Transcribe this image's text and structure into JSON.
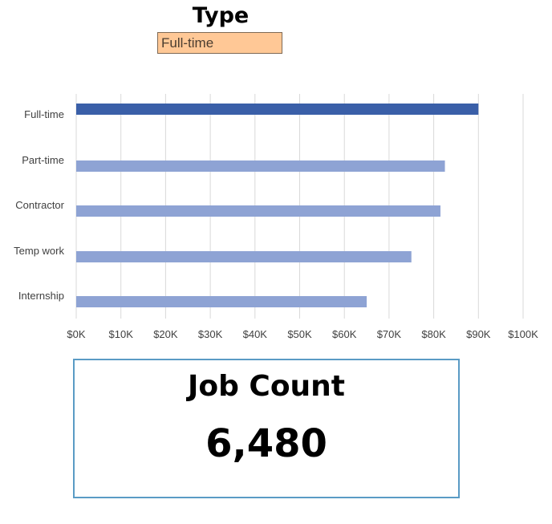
{
  "filter": {
    "title": "Type",
    "selected": "Full-time"
  },
  "chart_data": {
    "type": "bar",
    "orientation": "horizontal",
    "categories": [
      "Full-time",
      "Part-time",
      "Contractor",
      "Temp work",
      "Internship"
    ],
    "values": [
      90000,
      82500,
      81500,
      75000,
      65000
    ],
    "highlighted_category": "Full-time",
    "xlim": [
      0,
      100000
    ],
    "x_ticks": [
      0,
      10000,
      20000,
      30000,
      40000,
      50000,
      60000,
      70000,
      80000,
      90000,
      100000
    ],
    "x_tick_labels": [
      "$0K",
      "$10K",
      "$20K",
      "$30K",
      "$40K",
      "$50K",
      "$60K",
      "$70K",
      "$80K",
      "$90K",
      "$100K"
    ],
    "grid": "vertical",
    "colors": {
      "highlight": "#3a5fa8",
      "default": "#8ea3d4",
      "grid": "#d9d9d9"
    },
    "title": "",
    "xlabel": "",
    "ylabel": ""
  },
  "kpi": {
    "label": "Job Count",
    "value": "6,480"
  }
}
